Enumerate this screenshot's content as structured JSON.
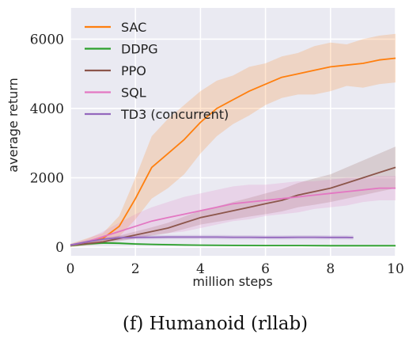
{
  "chart_data": {
    "type": "line",
    "caption": "(f) Humanoid (rllab)",
    "xlabel": "million steps",
    "ylabel": "average return",
    "xlim": [
      0,
      10
    ],
    "ylim": [
      -250,
      6900
    ],
    "xticks": [
      0,
      2,
      4,
      6,
      8,
      10
    ],
    "yticks": [
      0,
      2000,
      4000,
      6000
    ],
    "grid": true,
    "background": "#eaeaf2",
    "legend_position": "top-left",
    "series": [
      {
        "name": "SAC",
        "color": "#ff7f0e",
        "x": [
          0,
          0.5,
          1.0,
          1.5,
          2.0,
          2.5,
          3.0,
          3.5,
          4.0,
          4.5,
          5.0,
          5.5,
          6.0,
          6.5,
          7.0,
          7.5,
          8.0,
          8.5,
          9.0,
          9.5,
          10.0
        ],
        "y": [
          50,
          150,
          250,
          600,
          1400,
          2300,
          2700,
          3100,
          3600,
          4000,
          4250,
          4500,
          4700,
          4900,
          5000,
          5100,
          5200,
          5250,
          5300,
          5400,
          5450
        ],
        "band": [
          50,
          100,
          150,
          300,
          600,
          900,
          1000,
          1000,
          900,
          800,
          700,
          700,
          600,
          600,
          600,
          700,
          700,
          600,
          700,
          700,
          700
        ]
      },
      {
        "name": "DDPG",
        "color": "#2ca02c",
        "x": [
          0,
          0.5,
          1.0,
          1.5,
          2.0,
          2.5,
          3.0,
          3.5,
          4.0,
          5.0,
          6.0,
          7.0,
          8.0,
          9.0,
          10.0
        ],
        "y": [
          40,
          90,
          120,
          110,
          90,
          80,
          70,
          60,
          55,
          50,
          45,
          45,
          40,
          40,
          40
        ],
        "band": [
          20,
          30,
          30,
          30,
          30,
          25,
          25,
          25,
          20,
          20,
          20,
          20,
          20,
          20,
          20
        ]
      },
      {
        "name": "PPO",
        "color": "#8c564b",
        "x": [
          0,
          0.5,
          1.0,
          1.5,
          2.0,
          2.5,
          3.0,
          3.5,
          4.0,
          4.5,
          5.0,
          5.5,
          6.0,
          6.5,
          7.0,
          7.5,
          8.0,
          8.5,
          9.0,
          9.5,
          10.0
        ],
        "y": [
          50,
          100,
          150,
          250,
          350,
          450,
          550,
          700,
          850,
          950,
          1050,
          1150,
          1250,
          1350,
          1500,
          1600,
          1700,
          1850,
          2000,
          2150,
          2300
        ],
        "band": [
          30,
          50,
          60,
          80,
          100,
          120,
          150,
          180,
          200,
          220,
          250,
          270,
          300,
          320,
          350,
          380,
          400,
          450,
          500,
          550,
          600
        ]
      },
      {
        "name": "SQL",
        "color": "#e377c2",
        "x": [
          0,
          0.5,
          1.0,
          1.5,
          2.0,
          2.5,
          3.0,
          3.5,
          4.0,
          4.5,
          5.0,
          5.5,
          6.0,
          6.5,
          7.0,
          7.5,
          8.0,
          8.5,
          9.0,
          9.5,
          10.0
        ],
        "y": [
          50,
          150,
          300,
          450,
          600,
          750,
          850,
          950,
          1050,
          1150,
          1250,
          1300,
          1350,
          1400,
          1450,
          1500,
          1550,
          1600,
          1650,
          1700,
          1700
        ],
        "band": [
          30,
          80,
          150,
          250,
          350,
          400,
          450,
          500,
          500,
          500,
          500,
          500,
          450,
          450,
          450,
          400,
          400,
          400,
          350,
          350,
          350
        ]
      },
      {
        "name": "TD3 (concurrent)",
        "color": "#9467bd",
        "x": [
          0,
          0.5,
          1.0,
          1.5,
          2.0,
          2.5,
          3.0,
          3.5,
          4.0,
          4.5,
          5.0,
          5.5,
          6.0,
          6.5,
          7.0,
          7.5,
          8.0,
          8.5,
          8.7
        ],
        "y": [
          60,
          150,
          230,
          270,
          280,
          285,
          290,
          290,
          290,
          290,
          285,
          285,
          280,
          280,
          285,
          285,
          280,
          280,
          275
        ],
        "band": [
          30,
          50,
          60,
          60,
          60,
          60,
          60,
          60,
          60,
          60,
          60,
          60,
          60,
          60,
          60,
          60,
          60,
          60,
          60
        ]
      }
    ]
  }
}
